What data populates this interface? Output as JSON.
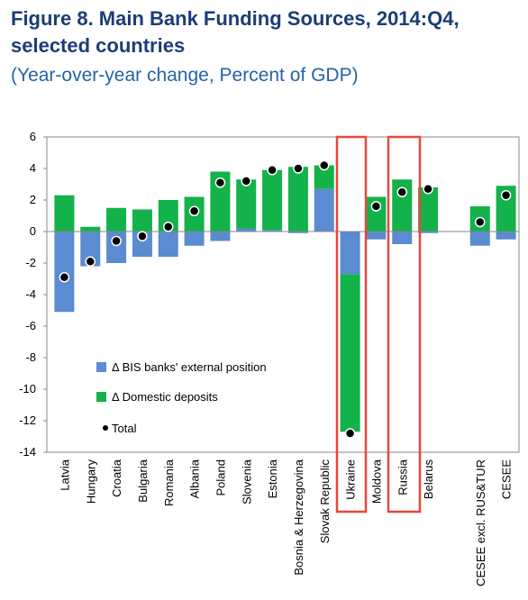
{
  "chart_data": {
    "type": "bar",
    "stacked": true,
    "title": "Figure 8. Main Bank Funding Sources, 2014:Q4, selected countries",
    "subtitle": "(Year-over-year change, Percent of GDP)",
    "categories": [
      "Latvia",
      "Hungary",
      "Croatia",
      "Bulgaria",
      "Romania",
      "Albania",
      "Poland",
      "Slovenia",
      "Estonia",
      "Bosnia & Herzegovina",
      "Slovak Republic",
      "Ukraine",
      "Moldova",
      "Russia",
      "Belarus",
      null,
      "CESEE excl. RUS&TUR",
      "CESEE"
    ],
    "series": [
      {
        "name": "Δ BIS banks' external position",
        "color": "#5b8bd0",
        "values": [
          -5.1,
          -2.2,
          -2.0,
          -1.6,
          -1.6,
          -0.9,
          -0.6,
          0.2,
          0.1,
          -0.1,
          2.7,
          -2.7,
          -0.5,
          -0.8,
          -0.1,
          null,
          -0.9,
          -0.5
        ]
      },
      {
        "name": "Δ Domestic deposits",
        "color": "#13b24a",
        "values": [
          2.3,
          0.3,
          1.5,
          1.4,
          2.0,
          2.2,
          3.8,
          3.1,
          3.8,
          4.1,
          1.5,
          -10.0,
          2.2,
          3.3,
          2.8,
          null,
          1.6,
          2.9
        ]
      }
    ],
    "totals": {
      "name": "Total",
      "color": "#000000",
      "values": [
        -2.9,
        -1.9,
        -0.6,
        -0.3,
        0.3,
        1.3,
        3.1,
        3.2,
        3.9,
        4.0,
        4.2,
        -12.8,
        1.6,
        2.5,
        2.7,
        null,
        0.6,
        2.3
      ]
    },
    "ylim": [
      -14,
      6
    ],
    "yticks": [
      -14,
      -12,
      -10,
      -8,
      -6,
      -4,
      -2,
      0,
      2,
      4,
      6
    ],
    "grid": false
  }
}
